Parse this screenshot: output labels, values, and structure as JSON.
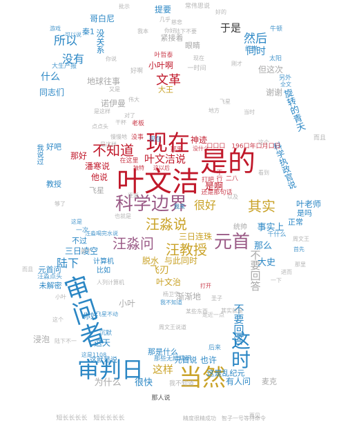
{
  "colors": {
    "red": "#c0182a",
    "blue": "#2a86c4",
    "purple": "#9a5a86",
    "gold": "#c9a227",
    "gray": "#a9a9a9",
    "dark": "#333333"
  },
  "words": [
    {
      "text": "叶文洁",
      "color": "red"
    },
    {
      "text": "是的",
      "color": "red"
    },
    {
      "text": "现在",
      "color": "red"
    },
    {
      "text": "科学边界",
      "color": "purple"
    },
    {
      "text": "审判日",
      "color": "blue"
    },
    {
      "text": "审问者",
      "color": "blue"
    },
    {
      "text": "当然",
      "color": "gold"
    },
    {
      "text": "这时",
      "color": "blue"
    },
    {
      "text": "元首",
      "color": "purple"
    },
    {
      "text": "汪淼问",
      "color": "purple"
    },
    {
      "text": "汪教授",
      "color": "gold"
    },
    {
      "text": "汪淼说",
      "color": "gold"
    },
    {
      "text": "其实",
      "color": "gold"
    },
    {
      "text": "不知道",
      "color": "red"
    },
    {
      "text": "叶文洁说",
      "color": "red"
    },
    {
      "text": "很好",
      "color": "gold"
    },
    {
      "text": "文革",
      "color": "red"
    },
    {
      "text": "然后",
      "color": "blue"
    },
    {
      "text": "所以",
      "color": "blue"
    },
    {
      "text": "于是",
      "color": "dark"
    },
    {
      "text": "没有",
      "color": "blue"
    },
    {
      "text": "同时",
      "color": "blue"
    },
    {
      "text": "什么",
      "color": "blue"
    },
    {
      "text": "陆下",
      "color": "blue"
    },
    {
      "text": "这样",
      "color": "gold"
    },
    {
      "text": "不要回答",
      "color": "gray"
    },
    {
      "text": "不要回答",
      "color": "blue"
    },
    {
      "text": "事实上",
      "color": "blue"
    },
    {
      "text": "大史",
      "color": "blue"
    },
    {
      "text": "那么",
      "color": "blue"
    },
    {
      "text": "是啊",
      "color": "red"
    },
    {
      "text": "潘寒说",
      "color": "red"
    },
    {
      "text": "他说",
      "color": "red"
    },
    {
      "text": "那好",
      "color": "red"
    },
    {
      "text": "神迹",
      "color": "red"
    },
    {
      "text": "三日连珠",
      "color": "gold"
    },
    {
      "text": "飞刃",
      "color": "gold"
    },
    {
      "text": "脱水",
      "color": "gold"
    },
    {
      "text": "与此同时",
      "color": "gold"
    },
    {
      "text": "叶文治",
      "color": "gold"
    },
    {
      "text": "三日凌空",
      "color": "blue"
    },
    {
      "text": "不过",
      "color": "blue"
    },
    {
      "text": "元首问",
      "color": "blue"
    },
    {
      "text": "未解密",
      "color": "blue"
    },
    {
      "text": "汪淼点头",
      "color": "blue"
    },
    {
      "text": "教授",
      "color": "blue"
    },
    {
      "text": "好吧",
      "color": "blue"
    },
    {
      "text": "我说过",
      "color": "blue"
    },
    {
      "text": "科学执政官说",
      "color": "blue"
    },
    {
      "text": "叶老师",
      "color": "blue"
    },
    {
      "text": "是吗",
      "color": "blue"
    },
    {
      "text": "正常",
      "color": "blue"
    },
    {
      "text": "哥白尼",
      "color": "blue"
    },
    {
      "text": "提要",
      "color": "blue"
    },
    {
      "text": "秦1",
      "color": "blue"
    },
    {
      "text": "没关系",
      "color": "blue"
    },
    {
      "text": "小叶啊",
      "color": "red"
    },
    {
      "text": "大王",
      "color": "gold"
    },
    {
      "text": "同志们",
      "color": "blue"
    },
    {
      "text": "旋转的青天",
      "color": "blue"
    },
    {
      "text": "这天",
      "color": "blue"
    },
    {
      "text": "很快",
      "color": "blue"
    },
    {
      "text": "为什么",
      "color": "gray"
    },
    {
      "text": "也许",
      "color": "blue"
    },
    {
      "text": "有人问",
      "color": "blue"
    },
    {
      "text": "元首说",
      "color": "blue"
    },
    {
      "text": "你好",
      "color": "blue"
    },
    {
      "text": "比如",
      "color": "blue"
    },
    {
      "text": "计算机",
      "color": "blue"
    },
    {
      "text": "眼睛",
      "color": "gray"
    },
    {
      "text": "紧接着",
      "color": "gray"
    },
    {
      "text": "地球往事",
      "color": "gray"
    },
    {
      "text": "诺伊曼",
      "color": "gray"
    },
    {
      "text": "但这次",
      "color": "gray"
    },
    {
      "text": "谢谢",
      "color": "gray"
    },
    {
      "text": "渐渐地",
      "color": "gray"
    },
    {
      "text": "小叶",
      "color": "gray"
    },
    {
      "text": "浸泡",
      "color": "gray"
    },
    {
      "text": "飞星",
      "color": "gray"
    },
    {
      "text": "麦克",
      "color": "gray"
    },
    {
      "text": "统帅",
      "color": "gray"
    },
    {
      "text": "常伟思说",
      "color": "gray"
    },
    {
      "text": "批示",
      "color": "gray"
    },
    {
      "text": "好的",
      "color": "gray"
    },
    {
      "text": "牛顿",
      "color": "blue"
    },
    {
      "text": "红岸",
      "color": "blue"
    },
    {
      "text": "太阳",
      "color": "blue"
    },
    {
      "text": "叶哲泰",
      "color": "red"
    },
    {
      "text": "好啊",
      "color": "gray"
    },
    {
      "text": "一时间",
      "color": "gray"
    },
    {
      "text": "另外",
      "color": "blue"
    },
    {
      "text": "全文",
      "color": "blue"
    },
    {
      "text": "千什么",
      "color": "blue"
    },
    {
      "text": "大生产报",
      "color": "blue"
    },
    {
      "text": "游戏",
      "color": "blue"
    },
    {
      "text": "可以说",
      "color": "blue"
    },
    {
      "text": "干杯",
      "color": "gray"
    },
    {
      "text": "是这样",
      "color": "gray"
    },
    {
      "text": "慢慢地",
      "color": "gray"
    },
    {
      "text": "没事",
      "color": "red"
    },
    {
      "text": "老板",
      "color": "red"
    },
    {
      "text": "那里",
      "color": "red"
    },
    {
      "text": "打吧",
      "color": "red"
    },
    {
      "text": "不行",
      "color": "red"
    },
    {
      "text": "二八",
      "color": "red"
    },
    {
      "text": "还是那句话",
      "color": "red"
    },
    {
      "text": "口口口　196口年口月口日",
      "color": "red"
    },
    {
      "text": "在这里",
      "color": "red"
    },
    {
      "text": "独特",
      "color": "red"
    },
    {
      "text": "这以后",
      "color": "red"
    },
    {
      "text": "没什么",
      "color": "red"
    },
    {
      "text": "一次",
      "color": "blue"
    },
    {
      "text": "汪淼喝完水说",
      "color": "blue"
    },
    {
      "text": "又是",
      "color": "gray"
    },
    {
      "text": "这是",
      "color": "blue"
    },
    {
      "text": "够了",
      "color": "gray"
    },
    {
      "text": "也就是",
      "color": "gray"
    },
    {
      "text": "是这样",
      "color": "gray"
    },
    {
      "text": "对了",
      "color": "gray"
    },
    {
      "text": "而且",
      "color": "gray"
    },
    {
      "text": "首先",
      "color": "blue"
    },
    {
      "text": "那个",
      "color": "gray"
    },
    {
      "text": "杨卫宁",
      "color": "gray"
    },
    {
      "text": "那是什么",
      "color": "blue"
    },
    {
      "text": "这是乱纪元",
      "color": "blue"
    },
    {
      "text": "后来",
      "color": "blue"
    },
    {
      "text": "沉默",
      "color": "blue"
    },
    {
      "text": "这是1108",
      "color": "blue"
    },
    {
      "text": "这就是说",
      "color": "blue"
    },
    {
      "text": "那些无辨精研",
      "color": "blue"
    },
    {
      "text": "我不知道",
      "color": "gray"
    },
    {
      "text": "那人说",
      "color": "dark"
    },
    {
      "text": "短长长长长　短长长长长",
      "color": "gray"
    },
    {
      "text": "精度很精成功　智子一号等待命令",
      "color": "gray"
    },
    {
      "text": "再见",
      "color": "gray"
    },
    {
      "text": "现在",
      "color": "blue"
    },
    {
      "text": "圣子",
      "color": "gray"
    },
    {
      "text": "点点头",
      "color": "gray"
    },
    {
      "text": "陆下不一",
      "color": "gray"
    },
    {
      "text": "而且",
      "color": "gray"
    },
    {
      "text": "周文王说道",
      "color": "gray"
    },
    {
      "text": "人列计算机",
      "color": "gray"
    },
    {
      "text": "走近一点",
      "color": "gray"
    },
    {
      "text": "小叶",
      "color": "gray"
    },
    {
      "text": "这个",
      "color": "gray"
    },
    {
      "text": "飞星不动",
      "color": "blue"
    },
    {
      "text": "其实就是",
      "color": "gray"
    },
    {
      "text": "我不知道",
      "color": "blue"
    },
    {
      "text": "某些东西",
      "color": "gray"
    },
    {
      "text": "你好",
      "color": "gray"
    },
    {
      "text": "慈悲",
      "color": "gray"
    },
    {
      "text": "几乎",
      "color": "gray"
    },
    {
      "text": "你说",
      "color": "gray"
    },
    {
      "text": "我本",
      "color": "gray"
    },
    {
      "text": "陆下不要",
      "color": "gray"
    },
    {
      "text": "现在",
      "color": "gray"
    },
    {
      "text": "刚才",
      "color": "gray"
    },
    {
      "text": "这个",
      "color": "gray"
    },
    {
      "text": "看到",
      "color": "gray"
    },
    {
      "text": "进而",
      "color": "gray"
    },
    {
      "text": "那里",
      "color": "gray"
    },
    {
      "text": "一下",
      "color": "gray"
    },
    {
      "text": "打开",
      "color": "red"
    },
    {
      "text": "以及",
      "color": "gray"
    },
    {
      "text": "逐渐",
      "color": "gray"
    },
    {
      "text": "地方",
      "color": "gray"
    },
    {
      "text": "飞星",
      "color": "gray"
    },
    {
      "text": "伟大",
      "color": "gray"
    },
    {
      "text": "当时",
      "color": "gray"
    },
    {
      "text": "周文王",
      "color": "gray"
    },
    {
      "text": "但是",
      "color": "gray"
    },
    {
      "text": "我来",
      "color": "blue"
    }
  ]
}
